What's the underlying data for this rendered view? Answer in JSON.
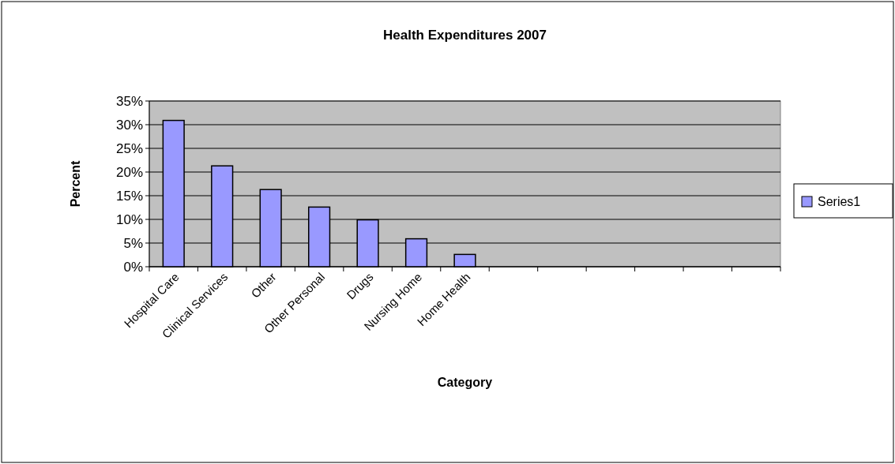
{
  "chart_data": {
    "type": "bar",
    "title": "Health Expenditures 2007",
    "xlabel": "Category",
    "ylabel": "Percent",
    "categories": [
      "Hospital Care",
      "Clinical Services",
      "Other",
      "Other Personal",
      "Drugs",
      "Nursing Home",
      "Home Health",
      null,
      null,
      null,
      null,
      null,
      null
    ],
    "series": [
      {
        "name": "Series1",
        "color": "#9999ff",
        "values": [
          30.9,
          21.3,
          16.3,
          12.6,
          9.9,
          5.9,
          2.6,
          null,
          null,
          null,
          null,
          null,
          null
        ]
      }
    ],
    "ylim": [
      0,
      35
    ],
    "yticks": [
      {
        "value": 0,
        "label": "0%"
      },
      {
        "value": 5,
        "label": "5%"
      },
      {
        "value": 10,
        "label": "10%"
      },
      {
        "value": 15,
        "label": "15%"
      },
      {
        "value": 20,
        "label": "20%"
      },
      {
        "value": 25,
        "label": "25%"
      },
      {
        "value": 30,
        "label": "30%"
      },
      {
        "value": 35,
        "label": "35%"
      }
    ],
    "grid": "y",
    "legend": "right"
  }
}
